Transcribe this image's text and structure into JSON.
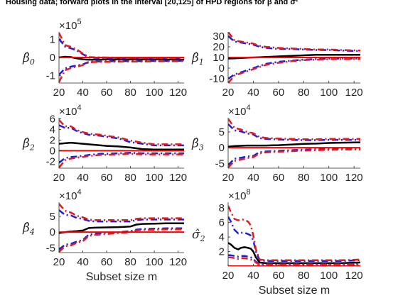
{
  "figure": {
    "title": "Housing data; forward plots in the interval [20,125]  of HPD regions for β and σ²"
  },
  "colors": {
    "estimate": "#000000",
    "hpd_inner": "#1f1fd8",
    "hpd_outer": "#e41a1c",
    "reference": "#ff0000",
    "axis": "#262626"
  },
  "chart_data": [
    {
      "type": "line",
      "panel": "beta0",
      "ylabel": "β̂",
      "ylabel_sub": "0",
      "exponent_base": "×10",
      "exponent_power": "5",
      "xlabel": "",
      "xlim": [
        20,
        125
      ],
      "ylim": [
        -1.4,
        1.4
      ],
      "xticks": [
        "20",
        "40",
        "60",
        "80",
        "100",
        "120"
      ],
      "yticks": [
        {
          "v": -1,
          "label": "-1"
        },
        {
          "v": 0,
          "label": "0"
        },
        {
          "v": 1,
          "label": "1"
        }
      ],
      "x": [
        20,
        25,
        30,
        35,
        40,
        45,
        50,
        60,
        70,
        80,
        90,
        100,
        110,
        125
      ],
      "series": [
        {
          "name": "estimate",
          "values": [
            0.0,
            0.04,
            0.02,
            -0.05,
            -0.1,
            -0.12,
            -0.12,
            -0.11,
            -0.1,
            -0.1,
            -0.1,
            -0.1,
            -0.11,
            -0.12
          ]
        },
        {
          "name": "hpd_inner_upper",
          "values": [
            1.02,
            0.6,
            0.5,
            0.38,
            0.18,
            0.0,
            -0.02,
            -0.03,
            -0.04,
            -0.05,
            -0.05,
            -0.05,
            -0.05,
            -0.06
          ]
        },
        {
          "name": "hpd_inner_lower",
          "values": [
            -0.95,
            -0.6,
            -0.5,
            -0.44,
            -0.38,
            -0.24,
            -0.22,
            -0.21,
            -0.2,
            -0.2,
            -0.2,
            -0.19,
            -0.19,
            -0.18
          ]
        },
        {
          "name": "hpd_outer_upper",
          "values": [
            1.35,
            0.68,
            0.58,
            0.44,
            0.22,
            0.02,
            0.01,
            0.0,
            -0.01,
            -0.02,
            -0.02,
            -0.02,
            -0.03,
            -0.03
          ]
        },
        {
          "name": "hpd_outer_lower",
          "values": [
            -1.35,
            -0.7,
            -0.58,
            -0.5,
            -0.42,
            -0.27,
            -0.25,
            -0.24,
            -0.23,
            -0.22,
            -0.22,
            -0.21,
            -0.21,
            -0.2
          ]
        },
        {
          "name": "reference",
          "values": [
            0,
            0,
            0,
            0,
            0,
            0,
            0,
            0,
            0,
            0,
            0,
            0,
            0,
            0
          ]
        }
      ]
    },
    {
      "type": "line",
      "panel": "beta1",
      "ylabel": "β̂",
      "ylabel_sub": "1",
      "exponent_base": "",
      "exponent_power": "",
      "xlabel": "",
      "xlim": [
        20,
        125
      ],
      "ylim": [
        -14,
        34
      ],
      "xticks": [
        "20",
        "40",
        "60",
        "80",
        "100",
        "120"
      ],
      "yticks": [
        {
          "v": -10,
          "label": "-10"
        },
        {
          "v": 0,
          "label": "0"
        },
        {
          "v": 10,
          "label": "10"
        },
        {
          "v": 20,
          "label": "20"
        },
        {
          "v": 30,
          "label": "30"
        }
      ],
      "x": [
        20,
        25,
        30,
        35,
        40,
        45,
        50,
        60,
        70,
        80,
        90,
        100,
        110,
        125
      ],
      "series": [
        {
          "name": "estimate",
          "values": [
            9,
            9.2,
            9.5,
            9.8,
            10,
            10.2,
            10.5,
            11,
            11.5,
            12,
            12.5,
            12.5,
            12.5,
            12.5
          ]
        },
        {
          "name": "hpd_inner_upper",
          "values": [
            30,
            25,
            24,
            23,
            22,
            20,
            19,
            18,
            18,
            17.5,
            17,
            17,
            16.5,
            16
          ]
        },
        {
          "name": "hpd_inner_lower",
          "values": [
            -10,
            -6,
            -4,
            -2,
            0,
            2,
            4,
            6,
            7,
            8,
            8.5,
            9,
            9,
            9
          ]
        },
        {
          "name": "hpd_outer_upper",
          "values": [
            34,
            26,
            25,
            24,
            23,
            21,
            20,
            19,
            18.5,
            18,
            17.5,
            17.5,
            17,
            16.5
          ]
        },
        {
          "name": "hpd_outer_lower",
          "values": [
            -14,
            -7,
            -5,
            -3,
            -1,
            1,
            3,
            5,
            6.5,
            7.5,
            8,
            8.5,
            8.5,
            8.5
          ]
        },
        {
          "name": "reference",
          "values": [
            10,
            10,
            10,
            10,
            10,
            10,
            10,
            10,
            10,
            10,
            10,
            10,
            10,
            10
          ]
        }
      ]
    },
    {
      "type": "line",
      "panel": "beta2",
      "ylabel": "β̂",
      "ylabel_sub": "2",
      "exponent_base": "×10",
      "exponent_power": "4",
      "xlabel": "",
      "xlim": [
        20,
        125
      ],
      "ylim": [
        -3.3,
        6.2
      ],
      "xticks": [
        "20",
        "40",
        "60",
        "80",
        "100",
        "120"
      ],
      "yticks": [
        {
          "v": -2,
          "label": "-2"
        },
        {
          "v": 0,
          "label": "0"
        },
        {
          "v": 2,
          "label": "2"
        },
        {
          "v": 4,
          "label": "4"
        },
        {
          "v": 6,
          "label": "6"
        }
      ],
      "x": [
        20,
        25,
        30,
        35,
        40,
        45,
        50,
        55,
        60,
        70,
        80,
        90,
        100,
        110,
        125
      ],
      "series": [
        {
          "name": "estimate",
          "values": [
            1.3,
            1.4,
            1.5,
            1.4,
            1.3,
            1.2,
            1.1,
            1.0,
            0.9,
            0.8,
            0.6,
            0.3,
            0.2,
            0.2,
            0.2
          ]
        },
        {
          "name": "hpd_inner_upper",
          "values": [
            4.8,
            4.3,
            4.3,
            3.7,
            3.3,
            3.0,
            2.9,
            2.8,
            2.6,
            2.3,
            1.6,
            1.3,
            1.0,
            1.0,
            1.0
          ]
        },
        {
          "name": "hpd_inner_lower",
          "values": [
            -2.3,
            -1.4,
            -1.2,
            -1.1,
            -1.0,
            -0.8,
            -0.7,
            -0.6,
            -0.6,
            -0.5,
            -0.4,
            -0.5,
            -0.5,
            -0.5,
            -0.5
          ]
        },
        {
          "name": "hpd_outer_upper",
          "values": [
            5.8,
            4.6,
            4.6,
            3.9,
            3.5,
            3.2,
            3.1,
            3.0,
            2.8,
            2.5,
            1.9,
            1.5,
            1.2,
            1.2,
            1.2
          ]
        },
        {
          "name": "hpd_outer_lower",
          "values": [
            -3.2,
            -1.8,
            -1.5,
            -1.3,
            -1.2,
            -1.0,
            -0.9,
            -0.8,
            -0.8,
            -0.7,
            -0.6,
            -0.7,
            -0.7,
            -0.7,
            -0.7
          ]
        },
        {
          "name": "reference",
          "values": [
            0,
            0,
            0,
            0,
            0,
            0,
            0,
            0,
            0,
            0,
            0,
            0,
            0,
            0,
            0
          ]
        }
      ]
    },
    {
      "type": "line",
      "panel": "beta3",
      "ylabel": "β̂",
      "ylabel_sub": "3",
      "exponent_base": "×10",
      "exponent_power": "4",
      "xlabel": "",
      "xlim": [
        20,
        125
      ],
      "ylim": [
        -6.5,
        9.5
      ],
      "xticks": [
        "20",
        "40",
        "60",
        "80",
        "100",
        "120"
      ],
      "yticks": [
        {
          "v": -5,
          "label": "-5"
        },
        {
          "v": 0,
          "label": "0"
        },
        {
          "v": 5,
          "label": "5"
        }
      ],
      "x": [
        20,
        25,
        30,
        35,
        40,
        45,
        50,
        60,
        70,
        80,
        90,
        100,
        110,
        125
      ],
      "series": [
        {
          "name": "estimate",
          "values": [
            0.3,
            0.5,
            0.6,
            0.7,
            0.7,
            0.7,
            0.7,
            0.8,
            1.0,
            1.2,
            1.3,
            1.5,
            1.6,
            1.7
          ]
        },
        {
          "name": "hpd_inner_upper",
          "values": [
            7.5,
            5.5,
            5.2,
            4.5,
            4.2,
            3.0,
            2.8,
            2.6,
            2.5,
            2.4,
            2.4,
            2.5,
            2.5,
            2.5
          ]
        },
        {
          "name": "hpd_inner_lower",
          "values": [
            -5.5,
            -3.5,
            -3.2,
            -2.8,
            -2.6,
            -1.4,
            -1.2,
            -1.0,
            -0.8,
            -0.6,
            -0.5,
            -0.4,
            -0.3,
            -0.3
          ]
        },
        {
          "name": "hpd_outer_upper",
          "values": [
            9.2,
            6.3,
            5.8,
            5.0,
            4.6,
            3.4,
            3.1,
            2.9,
            2.8,
            2.7,
            2.7,
            2.8,
            2.8,
            2.8
          ]
        },
        {
          "name": "hpd_outer_lower",
          "values": [
            -6.3,
            -4.2,
            -3.8,
            -3.3,
            -3.0,
            -1.8,
            -1.5,
            -1.3,
            -1.1,
            -0.9,
            -0.8,
            -0.7,
            -0.6,
            -0.6
          ]
        },
        {
          "name": "reference",
          "values": [
            0,
            0,
            0,
            0,
            0,
            0,
            0,
            0,
            0,
            0,
            0,
            0,
            0,
            0
          ]
        }
      ]
    },
    {
      "type": "line",
      "panel": "beta4",
      "ylabel": "β̂",
      "ylabel_sub": "4",
      "exponent_base": "×10",
      "exponent_power": "4",
      "xlabel": "Subset size m",
      "xlim": [
        20,
        125
      ],
      "ylim": [
        -6.5,
        9.5
      ],
      "xticks": [
        "20",
        "40",
        "60",
        "80",
        "100",
        "120"
      ],
      "yticks": [
        {
          "v": -5,
          "label": "-5"
        },
        {
          "v": 0,
          "label": "0"
        },
        {
          "v": 5,
          "label": "5"
        }
      ],
      "x": [
        20,
        25,
        30,
        35,
        40,
        45,
        50,
        60,
        70,
        80,
        85,
        90,
        100,
        110,
        125
      ],
      "series": [
        {
          "name": "estimate",
          "values": [
            -0.3,
            0.0,
            0.2,
            0.3,
            0.5,
            1.3,
            1.4,
            1.5,
            1.6,
            1.8,
            2.4,
            2.6,
            2.7,
            2.8,
            2.8
          ]
        },
        {
          "name": "hpd_inner_upper",
          "values": [
            7.0,
            5.5,
            5.3,
            4.5,
            4.2,
            3.6,
            3.4,
            3.4,
            3.4,
            3.4,
            3.8,
            4.0,
            4.0,
            4.0,
            4.0
          ]
        },
        {
          "name": "hpd_inner_lower",
          "values": [
            -5.5,
            -4.0,
            -3.7,
            -3.0,
            -2.5,
            -0.8,
            -0.5,
            -0.2,
            0.0,
            0.3,
            0.8,
            1.0,
            1.1,
            1.2,
            1.2
          ]
        },
        {
          "name": "hpd_outer_upper",
          "values": [
            9.0,
            6.8,
            6.2,
            5.2,
            4.7,
            4.0,
            3.8,
            3.8,
            3.8,
            3.8,
            4.2,
            4.4,
            4.4,
            4.4,
            4.4
          ]
        },
        {
          "name": "hpd_outer_lower",
          "values": [
            -6.3,
            -4.5,
            -4.2,
            -3.4,
            -2.9,
            -1.2,
            -0.9,
            -0.6,
            -0.3,
            0.0,
            0.5,
            0.7,
            0.8,
            0.9,
            0.9
          ]
        },
        {
          "name": "reference",
          "values": [
            0,
            0,
            0,
            0,
            0,
            0,
            0,
            0,
            0,
            0,
            0,
            0,
            0,
            0,
            0
          ]
        }
      ]
    },
    {
      "type": "line",
      "panel": "sigma2",
      "ylabel": "σ̂",
      "ylabel_sub": "2",
      "exponent_base": "×10",
      "exponent_power": "8",
      "xlabel": "Subset size m",
      "xlim": [
        20,
        125
      ],
      "ylim": [
        0,
        8.8
      ],
      "xticks": [
        "20",
        "40",
        "60",
        "80",
        "100",
        "120"
      ],
      "yticks": [
        {
          "v": 2,
          "label": "2"
        },
        {
          "v": 4,
          "label": "4"
        },
        {
          "v": 6,
          "label": "6"
        },
        {
          "v": 8,
          "label": "8"
        }
      ],
      "x": [
        20,
        22,
        25,
        28,
        30,
        33,
        36,
        38,
        40,
        42,
        45,
        50,
        60,
        70,
        80,
        90,
        100,
        110,
        125
      ],
      "series": [
        {
          "name": "estimate",
          "values": [
            3.2,
            3.0,
            2.5,
            2.3,
            2.5,
            2.6,
            2.5,
            2.4,
            2.0,
            1.2,
            0.5,
            0.4,
            0.4,
            0.4,
            0.4,
            0.4,
            0.4,
            0.4,
            0.5
          ]
        },
        {
          "name": "hpd_inner_upper",
          "values": [
            6.8,
            6.2,
            5.0,
            4.5,
            4.6,
            4.6,
            4.4,
            4.2,
            3.5,
            2.0,
            0.8,
            0.7,
            0.7,
            0.7,
            0.7,
            0.7,
            0.7,
            0.7,
            0.8
          ]
        },
        {
          "name": "hpd_inner_lower",
          "values": [
            1.5,
            1.5,
            1.4,
            1.3,
            1.4,
            1.4,
            1.3,
            1.2,
            1.0,
            0.6,
            0.3,
            0.25,
            0.25,
            0.25,
            0.25,
            0.25,
            0.25,
            0.25,
            0.3
          ]
        },
        {
          "name": "hpd_outer_upper",
          "values": [
            8.3,
            7.5,
            6.5,
            6.3,
            6.4,
            6.4,
            6.1,
            5.6,
            4.2,
            2.3,
            0.9,
            0.8,
            0.8,
            0.8,
            0.8,
            0.8,
            0.8,
            0.8,
            0.9
          ]
        },
        {
          "name": "hpd_outer_lower",
          "values": [
            1.2,
            1.2,
            1.1,
            1.0,
            1.1,
            1.1,
            1.0,
            0.9,
            0.8,
            0.5,
            0.2,
            0.2,
            0.2,
            0.2,
            0.2,
            0.2,
            0.2,
            0.2,
            0.25
          ]
        },
        {
          "name": "reference",
          "values": [
            0,
            0,
            0,
            0,
            0,
            0,
            0,
            0,
            0,
            0,
            0,
            0,
            0,
            0,
            0,
            0,
            0,
            0,
            0
          ]
        }
      ]
    }
  ]
}
